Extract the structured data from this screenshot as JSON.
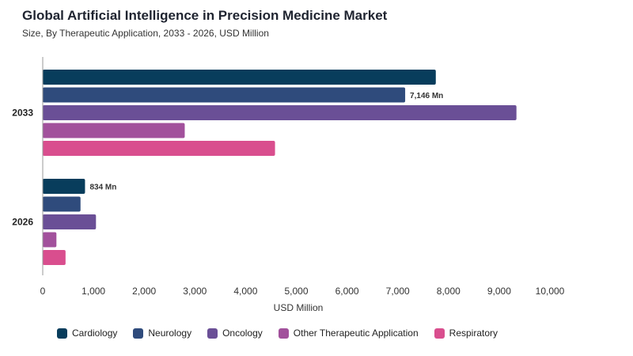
{
  "title": "Global Artificial Intelligence in Precision Medicine Market",
  "subtitle": "Size, By Therapeutic Application, 2033 - 2026, USD Million",
  "chart_data": {
    "type": "bar",
    "orientation": "horizontal",
    "categories": [
      "2033",
      "2026"
    ],
    "series": [
      {
        "name": "Cardiology",
        "color": "#083d5c",
        "values": [
          7750,
          834
        ]
      },
      {
        "name": "Neurology",
        "color": "#2f4b7c",
        "values": [
          7146,
          745
        ]
      },
      {
        "name": "Oncology",
        "color": "#6a4f96",
        "values": [
          9340,
          1050
        ]
      },
      {
        "name": "Other Therapeutic Application",
        "color": "#a2519c",
        "values": [
          2800,
          270
        ]
      },
      {
        "name": "Respiratory",
        "color": "#d94e8e",
        "values": [
          4580,
          450
        ]
      }
    ],
    "data_labels": [
      {
        "category": "2033",
        "series": "Neurology",
        "text": "7,146 Mn"
      },
      {
        "category": "2026",
        "series": "Cardiology",
        "text": "834 Mn"
      }
    ],
    "xlabel": "USD Million",
    "ylabel": "",
    "xlim": [
      0,
      10000
    ],
    "xticks": [
      "0",
      "1,000",
      "2,000",
      "3,000",
      "4,000",
      "5,000",
      "6,000",
      "7,000",
      "8,000",
      "9,000",
      "10,000"
    ],
    "grid": false,
    "legend_position": "bottom"
  }
}
